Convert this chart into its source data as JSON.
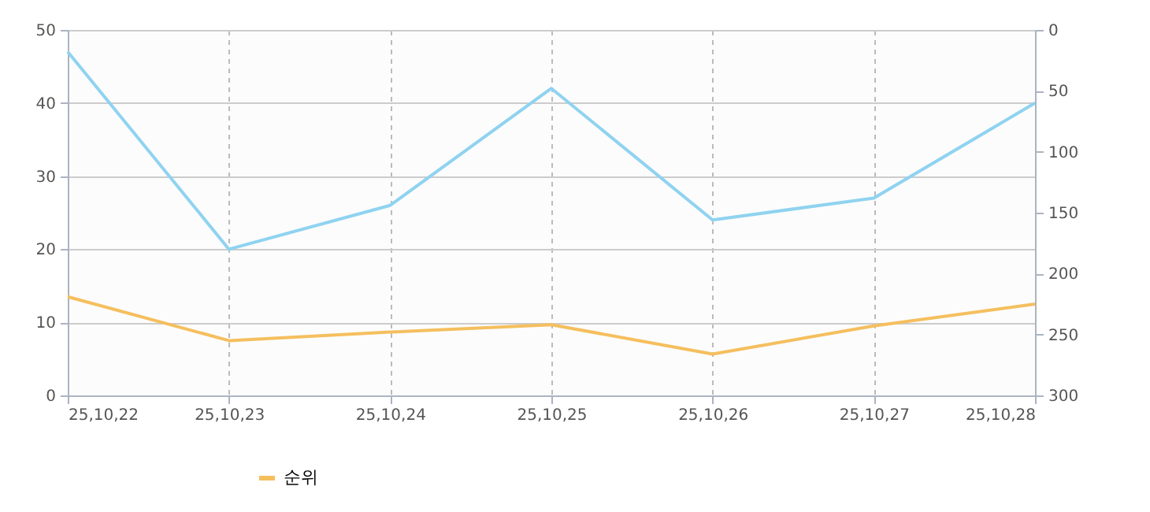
{
  "chart_data": {
    "type": "line",
    "categories": [
      "25,10,22",
      "25,10,23",
      "25,10,24",
      "25,10,25",
      "25,10,26",
      "25,10,27",
      "25,10,28"
    ],
    "series": [
      {
        "color": "#8fd3f0",
        "values": [
          47,
          20,
          26,
          42,
          24,
          27,
          40
        ]
      },
      {
        "name": "순위",
        "color": "#f5bf5e",
        "axis": "y2",
        "values": [
          219,
          255,
          248,
          242,
          266,
          243,
          225
        ]
      }
    ],
    "ylim": [
      0,
      50
    ],
    "yticks": [
      0,
      10,
      20,
      30,
      40,
      50
    ],
    "y2lim": [
      300,
      0
    ],
    "y2ticks": [
      0,
      50,
      100,
      150,
      200,
      250,
      300
    ],
    "grid": true,
    "legend": "bottom left",
    "marker": "none",
    "line_style": "solid"
  }
}
